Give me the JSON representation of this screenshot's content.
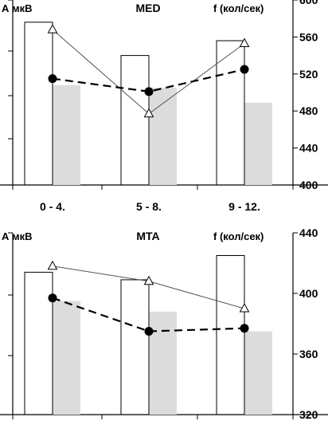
{
  "chart_data": [
    {
      "type": "bar",
      "title": "MED",
      "left_axis_label": "А мкВ",
      "right_axis_label": "f (кол/сек)",
      "categories": [
        "0 - 4.",
        "5 - 8.",
        "9 - 12."
      ],
      "left_axis": {
        "ticks": [
          "",
          "",
          "",
          ""
        ],
        "note": "left axis ticks unlabeled"
      },
      "right_axis": {
        "range": [
          400,
          600
        ],
        "ticks": [
          400,
          440,
          480,
          520,
          560,
          600
        ]
      },
      "series": [
        {
          "style": "open-bar",
          "values": [
            576,
            540,
            556
          ]
        },
        {
          "style": "gray-bar",
          "values": [
            508,
            505,
            489
          ]
        },
        {
          "style": "line-triangle",
          "values": [
            568,
            477,
            553
          ]
        },
        {
          "style": "dashed-line-dot",
          "values": [
            515,
            501,
            525
          ]
        }
      ],
      "grid": false,
      "legend": "none"
    },
    {
      "type": "bar",
      "title": "MTA",
      "left_axis_label": "А мкВ",
      "right_axis_label": "f (кол/сек)",
      "categories": [
        "",
        "",
        ""
      ],
      "left_axis": {
        "ticks": [
          "",
          "",
          "",
          ""
        ],
        "note": "left axis ticks unlabeled"
      },
      "right_axis": {
        "range": [
          320,
          440
        ],
        "ticks": [
          320,
          360,
          400,
          440
        ]
      },
      "series": [
        {
          "style": "open-bar",
          "values": [
            414,
            409,
            425
          ]
        },
        {
          "style": "gray-bar",
          "values": [
            395,
            388,
            375
          ]
        },
        {
          "style": "line-triangle",
          "values": [
            418,
            408,
            390
          ]
        },
        {
          "style": "dashed-line-dot",
          "values": [
            397,
            375,
            377
          ]
        }
      ],
      "grid": false,
      "legend": "none"
    }
  ]
}
